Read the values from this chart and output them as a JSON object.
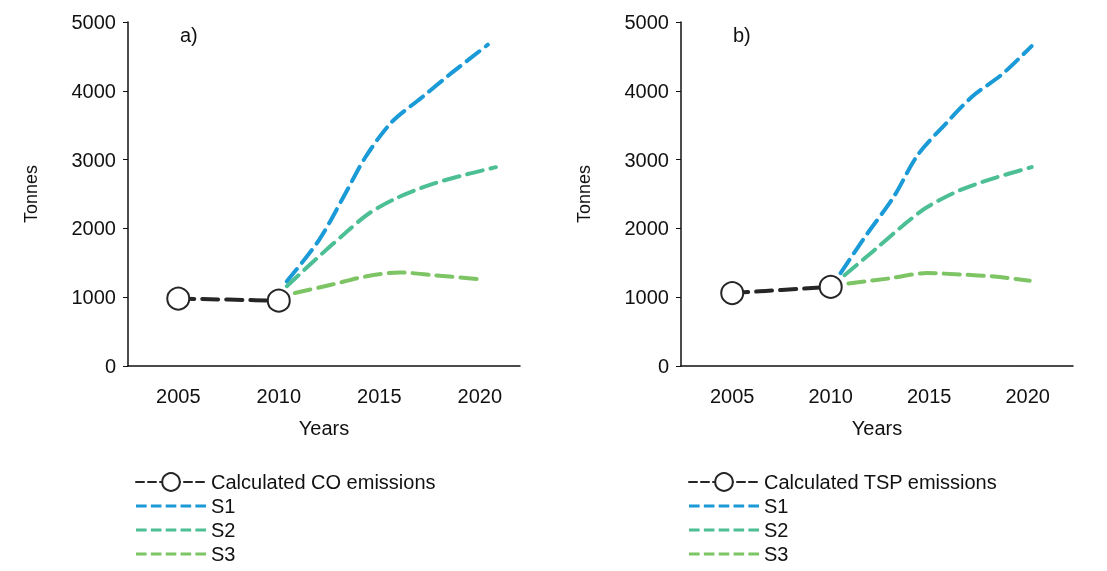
{
  "chart_data": [
    {
      "type": "line",
      "xlabel": "Years",
      "ylabel": "Tonnes",
      "annotations": [
        "a)"
      ],
      "xlim": [
        2002.5,
        2022
      ],
      "xticks": [
        2005,
        2010,
        2015,
        2020
      ],
      "ylim": [
        0,
        5000
      ],
      "yticks": [
        0,
        1000,
        2000,
        3000,
        4000,
        5000
      ],
      "grid": false,
      "legend": "bottom",
      "line_style": "dashed",
      "series": [
        {
          "name": "Calculated CO emissions",
          "color": "#262626",
          "marker": "circle",
          "x": [
            2005,
            2010
          ],
          "values": [
            980,
            950
          ]
        },
        {
          "name": "S1",
          "color": "#1a9ad6",
          "marker": "none",
          "x": [
            2010.4,
            2012.0,
            2013.3,
            2014.3,
            2015.6,
            2017.1,
            2018.6,
            2020.4
          ],
          "values": [
            1230,
            1830,
            2500,
            3030,
            3540,
            3900,
            4260,
            4670
          ]
        },
        {
          "name": "S2",
          "color": "#4cbf94",
          "marker": "none",
          "x": [
            2010.4,
            2011.8,
            2013.3,
            2014.5,
            2016.0,
            2017.7,
            2019.4,
            2020.8
          ],
          "values": [
            1160,
            1540,
            1930,
            2220,
            2460,
            2650,
            2790,
            2890
          ]
        },
        {
          "name": "S3",
          "color": "#7cc464",
          "marker": "none",
          "x": [
            2010.8,
            2012.6,
            2014.3,
            2016.0,
            2017.7,
            2020.0
          ],
          "values": [
            1060,
            1180,
            1300,
            1360,
            1320,
            1260
          ]
        }
      ]
    },
    {
      "type": "line",
      "xlabel": "Years",
      "ylabel": "Tonnes",
      "annotations": [
        "b)"
      ],
      "xlim": [
        2002.4,
        2022.3
      ],
      "xticks": [
        2005,
        2010,
        2015,
        2020
      ],
      "ylim": [
        0,
        5000
      ],
      "yticks": [
        0,
        1000,
        2000,
        3000,
        4000,
        5000
      ],
      "grid": false,
      "legend": "bottom",
      "line_style": "dashed",
      "series": [
        {
          "name": "Calculated TSP emissions",
          "color": "#262626",
          "marker": "circle",
          "x": [
            2005,
            2010
          ],
          "values": [
            1060,
            1150
          ]
        },
        {
          "name": "S1",
          "color": "#1a9ad6",
          "marker": "none",
          "x": [
            2010.5,
            2011.8,
            2013.2,
            2014.4,
            2015.8,
            2017.2,
            2018.7,
            2020.2
          ],
          "values": [
            1350,
            1900,
            2460,
            3060,
            3510,
            3920,
            4240,
            4650
          ]
        },
        {
          "name": "S2",
          "color": "#4cbf94",
          "marker": "none",
          "x": [
            2010.7,
            2012.2,
            2013.7,
            2014.9,
            2016.6,
            2018.3,
            2020.2
          ],
          "values": [
            1320,
            1680,
            2050,
            2310,
            2560,
            2730,
            2890
          ]
        },
        {
          "name": "S3",
          "color": "#7cc464",
          "marker": "none",
          "x": [
            2010.9,
            2012.9,
            2014.9,
            2016.6,
            2018.3,
            2020.1
          ],
          "values": [
            1200,
            1270,
            1350,
            1330,
            1300,
            1240
          ]
        }
      ]
    }
  ]
}
